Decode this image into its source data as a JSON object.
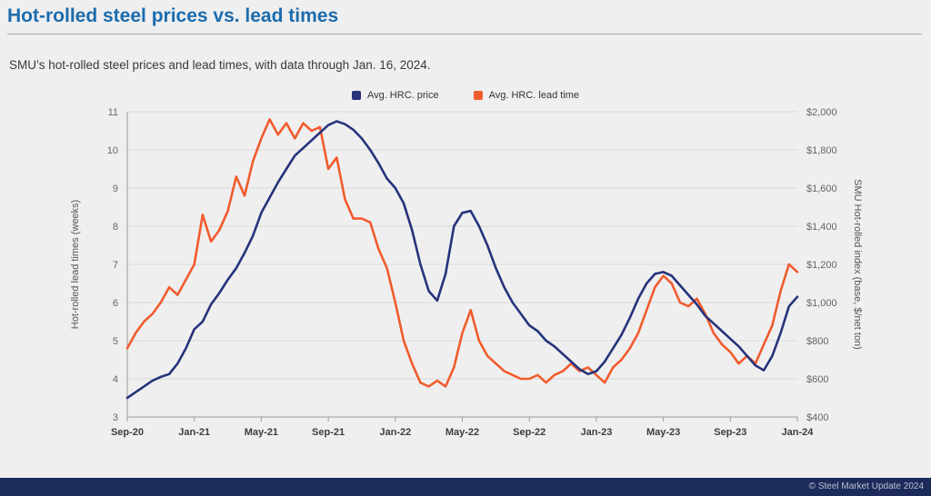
{
  "header": {
    "title": "Hot-rolled steel prices vs. lead times"
  },
  "subtitle": "SMU’s hot-rolled steel prices and lead times, with data through Jan. 16, 2024.",
  "footer": {
    "copyright": "© Steel Market Update 2024"
  },
  "colors": {
    "title": "#1b6cad",
    "price_line": "#26337b",
    "lead_time_line": "#f15c2d",
    "footer_bg": "#1d2b5b",
    "gridline": "#d9d9d9",
    "axis_line": "#9b9b9b"
  },
  "chart_data": {
    "type": "line",
    "x_tick_labels": [
      "Sep-20",
      "Jan-21",
      "May-21",
      "Sep-21",
      "Jan-22",
      "May-22",
      "Sep-22",
      "Jan-23",
      "May-23",
      "Sep-23",
      "Jan-24"
    ],
    "x_resolution": "semi-monthly points from Sep-2020 through Jan-2024",
    "left_axis": {
      "label": "Hot-rolled lead times (weeks)",
      "min": 3,
      "max": 11,
      "step": 1
    },
    "right_axis": {
      "label": "SMU Hot-rolled index (base, $/net ton)",
      "min": 400,
      "max": 2000,
      "step": 200,
      "format": "currency"
    },
    "grid": "horizontal",
    "legend_position": "top-center",
    "series": [
      {
        "name": "Avg. HRC. price",
        "slug": "price-line",
        "axis": "right",
        "color": "#26337b",
        "values": [
          500,
          530,
          560,
          590,
          610,
          625,
          680,
          760,
          860,
          900,
          990,
          1050,
          1120,
          1180,
          1260,
          1350,
          1470,
          1550,
          1630,
          1700,
          1770,
          1810,
          1850,
          1890,
          1930,
          1950,
          1935,
          1905,
          1860,
          1800,
          1730,
          1650,
          1600,
          1520,
          1380,
          1200,
          1060,
          1010,
          1150,
          1400,
          1470,
          1480,
          1400,
          1300,
          1180,
          1080,
          1000,
          940,
          880,
          850,
          800,
          770,
          730,
          690,
          650,
          625,
          640,
          690,
          760,
          830,
          920,
          1020,
          1100,
          1150,
          1160,
          1140,
          1090,
          1040,
          990,
          930,
          890,
          850,
          810,
          770,
          720,
          670,
          645,
          720,
          840,
          980,
          1030
        ]
      },
      {
        "name": "Avg. HRC. lead time",
        "slug": "lead-time-line",
        "axis": "left",
        "color": "#f15c2d",
        "values": [
          4.8,
          5.2,
          5.5,
          5.7,
          6.0,
          6.4,
          6.2,
          6.6,
          7.0,
          8.3,
          7.6,
          7.9,
          8.4,
          9.3,
          8.8,
          9.7,
          10.3,
          10.8,
          10.4,
          10.7,
          10.3,
          10.7,
          10.5,
          10.6,
          9.5,
          9.8,
          8.7,
          8.2,
          8.2,
          8.1,
          7.4,
          6.9,
          6.0,
          5.0,
          4.4,
          3.9,
          3.8,
          3.95,
          3.8,
          4.3,
          5.2,
          5.8,
          5.0,
          4.6,
          4.4,
          4.2,
          4.1,
          4.0,
          4.0,
          4.1,
          3.9,
          4.1,
          4.2,
          4.4,
          4.2,
          4.3,
          4.1,
          3.9,
          4.3,
          4.5,
          4.8,
          5.2,
          5.8,
          6.4,
          6.7,
          6.5,
          6.0,
          5.9,
          6.1,
          5.7,
          5.2,
          4.9,
          4.7,
          4.4,
          4.6,
          4.4,
          4.9,
          5.4,
          6.3,
          7.0,
          6.8
        ]
      }
    ]
  }
}
